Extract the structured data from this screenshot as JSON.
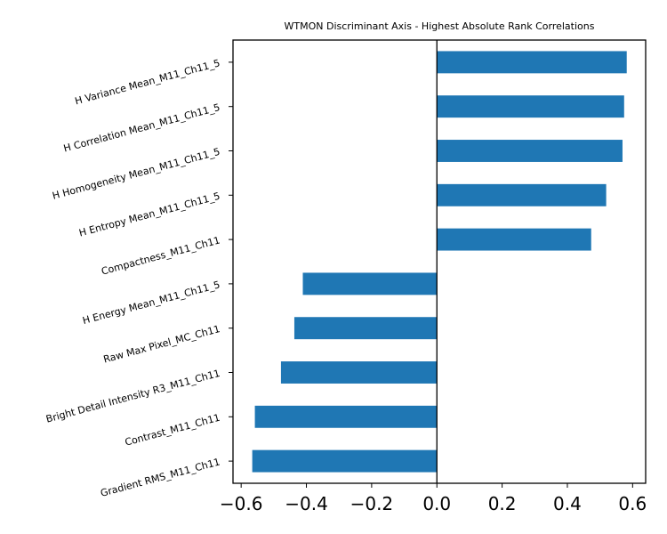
{
  "chart_data": {
    "type": "bar",
    "orientation": "horizontal",
    "title": "WTMON Discriminant Axis - Highest Absolute Rank Correlations",
    "xlabel": "",
    "ylabel": "",
    "xlim": [
      -0.625,
      0.64
    ],
    "xticks": [
      -0.6,
      -0.4,
      -0.2,
      0.0,
      0.2,
      0.4,
      0.6
    ],
    "xtick_labels": [
      "−0.6",
      "−0.4",
      "−0.2",
      "0.0",
      "0.2",
      "0.4",
      "0.6"
    ],
    "zero_line": true,
    "grid": false,
    "legend": "none",
    "bar_color": "#1f77b4",
    "categories": [
      "H Variance Mean_M11_Ch11_5",
      "H Correlation Mean_M11_Ch11_5",
      "H Homogeneity Mean_M11_Ch11_5",
      "H Entropy Mean_M11_Ch11_5",
      "Compactness_M11_Ch11",
      "H Energy Mean_M11_Ch11_5",
      "Raw Max Pixel_MC_Ch11",
      "Bright Detail Intensity R3_M11_Ch11",
      "Contrast_M11_Ch11",
      "Gradient RMS_M11_Ch11"
    ],
    "values": [
      0.582,
      0.574,
      0.569,
      0.519,
      0.473,
      -0.411,
      -0.437,
      -0.478,
      -0.558,
      -0.566
    ]
  }
}
